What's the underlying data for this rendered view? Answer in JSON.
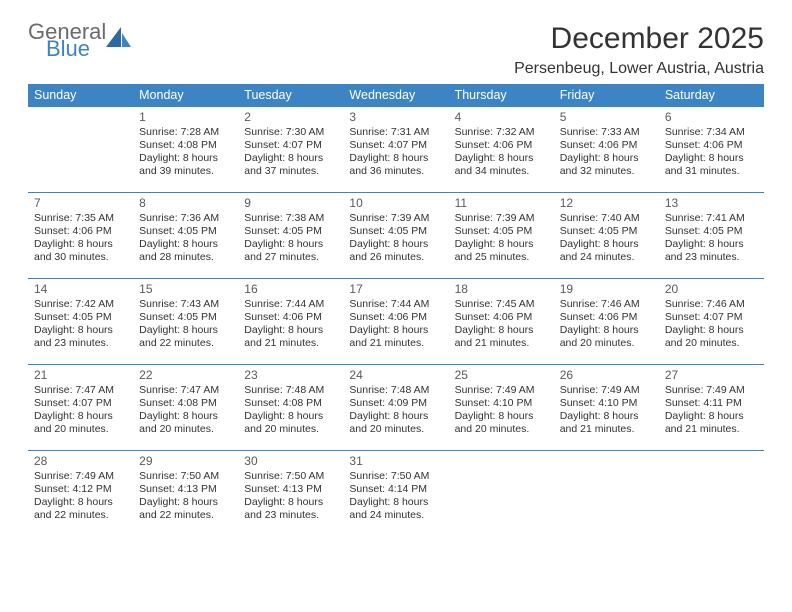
{
  "brand": {
    "general": "General",
    "blue": "Blue"
  },
  "header": {
    "month_title": "December 2025",
    "location": "Persenbeug, Lower Austria, Austria"
  },
  "colors": {
    "header_bg": "#3d84c4",
    "header_text": "#ffffff",
    "border": "#3d84c4",
    "text": "#333333",
    "logo_gray": "#6b6b6b",
    "logo_blue": "#3d84c4",
    "background": "#ffffff"
  },
  "weekdays": [
    "Sunday",
    "Monday",
    "Tuesday",
    "Wednesday",
    "Thursday",
    "Friday",
    "Saturday"
  ],
  "weeks": [
    [
      null,
      {
        "n": "1",
        "sr": "Sunrise: 7:28 AM",
        "ss": "Sunset: 4:08 PM",
        "d1": "Daylight: 8 hours",
        "d2": "and 39 minutes."
      },
      {
        "n": "2",
        "sr": "Sunrise: 7:30 AM",
        "ss": "Sunset: 4:07 PM",
        "d1": "Daylight: 8 hours",
        "d2": "and 37 minutes."
      },
      {
        "n": "3",
        "sr": "Sunrise: 7:31 AM",
        "ss": "Sunset: 4:07 PM",
        "d1": "Daylight: 8 hours",
        "d2": "and 36 minutes."
      },
      {
        "n": "4",
        "sr": "Sunrise: 7:32 AM",
        "ss": "Sunset: 4:06 PM",
        "d1": "Daylight: 8 hours",
        "d2": "and 34 minutes."
      },
      {
        "n": "5",
        "sr": "Sunrise: 7:33 AM",
        "ss": "Sunset: 4:06 PM",
        "d1": "Daylight: 8 hours",
        "d2": "and 32 minutes."
      },
      {
        "n": "6",
        "sr": "Sunrise: 7:34 AM",
        "ss": "Sunset: 4:06 PM",
        "d1": "Daylight: 8 hours",
        "d2": "and 31 minutes."
      }
    ],
    [
      {
        "n": "7",
        "sr": "Sunrise: 7:35 AM",
        "ss": "Sunset: 4:06 PM",
        "d1": "Daylight: 8 hours",
        "d2": "and 30 minutes."
      },
      {
        "n": "8",
        "sr": "Sunrise: 7:36 AM",
        "ss": "Sunset: 4:05 PM",
        "d1": "Daylight: 8 hours",
        "d2": "and 28 minutes."
      },
      {
        "n": "9",
        "sr": "Sunrise: 7:38 AM",
        "ss": "Sunset: 4:05 PM",
        "d1": "Daylight: 8 hours",
        "d2": "and 27 minutes."
      },
      {
        "n": "10",
        "sr": "Sunrise: 7:39 AM",
        "ss": "Sunset: 4:05 PM",
        "d1": "Daylight: 8 hours",
        "d2": "and 26 minutes."
      },
      {
        "n": "11",
        "sr": "Sunrise: 7:39 AM",
        "ss": "Sunset: 4:05 PM",
        "d1": "Daylight: 8 hours",
        "d2": "and 25 minutes."
      },
      {
        "n": "12",
        "sr": "Sunrise: 7:40 AM",
        "ss": "Sunset: 4:05 PM",
        "d1": "Daylight: 8 hours",
        "d2": "and 24 minutes."
      },
      {
        "n": "13",
        "sr": "Sunrise: 7:41 AM",
        "ss": "Sunset: 4:05 PM",
        "d1": "Daylight: 8 hours",
        "d2": "and 23 minutes."
      }
    ],
    [
      {
        "n": "14",
        "sr": "Sunrise: 7:42 AM",
        "ss": "Sunset: 4:05 PM",
        "d1": "Daylight: 8 hours",
        "d2": "and 23 minutes."
      },
      {
        "n": "15",
        "sr": "Sunrise: 7:43 AM",
        "ss": "Sunset: 4:05 PM",
        "d1": "Daylight: 8 hours",
        "d2": "and 22 minutes."
      },
      {
        "n": "16",
        "sr": "Sunrise: 7:44 AM",
        "ss": "Sunset: 4:06 PM",
        "d1": "Daylight: 8 hours",
        "d2": "and 21 minutes."
      },
      {
        "n": "17",
        "sr": "Sunrise: 7:44 AM",
        "ss": "Sunset: 4:06 PM",
        "d1": "Daylight: 8 hours",
        "d2": "and 21 minutes."
      },
      {
        "n": "18",
        "sr": "Sunrise: 7:45 AM",
        "ss": "Sunset: 4:06 PM",
        "d1": "Daylight: 8 hours",
        "d2": "and 21 minutes."
      },
      {
        "n": "19",
        "sr": "Sunrise: 7:46 AM",
        "ss": "Sunset: 4:06 PM",
        "d1": "Daylight: 8 hours",
        "d2": "and 20 minutes."
      },
      {
        "n": "20",
        "sr": "Sunrise: 7:46 AM",
        "ss": "Sunset: 4:07 PM",
        "d1": "Daylight: 8 hours",
        "d2": "and 20 minutes."
      }
    ],
    [
      {
        "n": "21",
        "sr": "Sunrise: 7:47 AM",
        "ss": "Sunset: 4:07 PM",
        "d1": "Daylight: 8 hours",
        "d2": "and 20 minutes."
      },
      {
        "n": "22",
        "sr": "Sunrise: 7:47 AM",
        "ss": "Sunset: 4:08 PM",
        "d1": "Daylight: 8 hours",
        "d2": "and 20 minutes."
      },
      {
        "n": "23",
        "sr": "Sunrise: 7:48 AM",
        "ss": "Sunset: 4:08 PM",
        "d1": "Daylight: 8 hours",
        "d2": "and 20 minutes."
      },
      {
        "n": "24",
        "sr": "Sunrise: 7:48 AM",
        "ss": "Sunset: 4:09 PM",
        "d1": "Daylight: 8 hours",
        "d2": "and 20 minutes."
      },
      {
        "n": "25",
        "sr": "Sunrise: 7:49 AM",
        "ss": "Sunset: 4:10 PM",
        "d1": "Daylight: 8 hours",
        "d2": "and 20 minutes."
      },
      {
        "n": "26",
        "sr": "Sunrise: 7:49 AM",
        "ss": "Sunset: 4:10 PM",
        "d1": "Daylight: 8 hours",
        "d2": "and 21 minutes."
      },
      {
        "n": "27",
        "sr": "Sunrise: 7:49 AM",
        "ss": "Sunset: 4:11 PM",
        "d1": "Daylight: 8 hours",
        "d2": "and 21 minutes."
      }
    ],
    [
      {
        "n": "28",
        "sr": "Sunrise: 7:49 AM",
        "ss": "Sunset: 4:12 PM",
        "d1": "Daylight: 8 hours",
        "d2": "and 22 minutes."
      },
      {
        "n": "29",
        "sr": "Sunrise: 7:50 AM",
        "ss": "Sunset: 4:13 PM",
        "d1": "Daylight: 8 hours",
        "d2": "and 22 minutes."
      },
      {
        "n": "30",
        "sr": "Sunrise: 7:50 AM",
        "ss": "Sunset: 4:13 PM",
        "d1": "Daylight: 8 hours",
        "d2": "and 23 minutes."
      },
      {
        "n": "31",
        "sr": "Sunrise: 7:50 AM",
        "ss": "Sunset: 4:14 PM",
        "d1": "Daylight: 8 hours",
        "d2": "and 24 minutes."
      },
      null,
      null,
      null
    ]
  ]
}
